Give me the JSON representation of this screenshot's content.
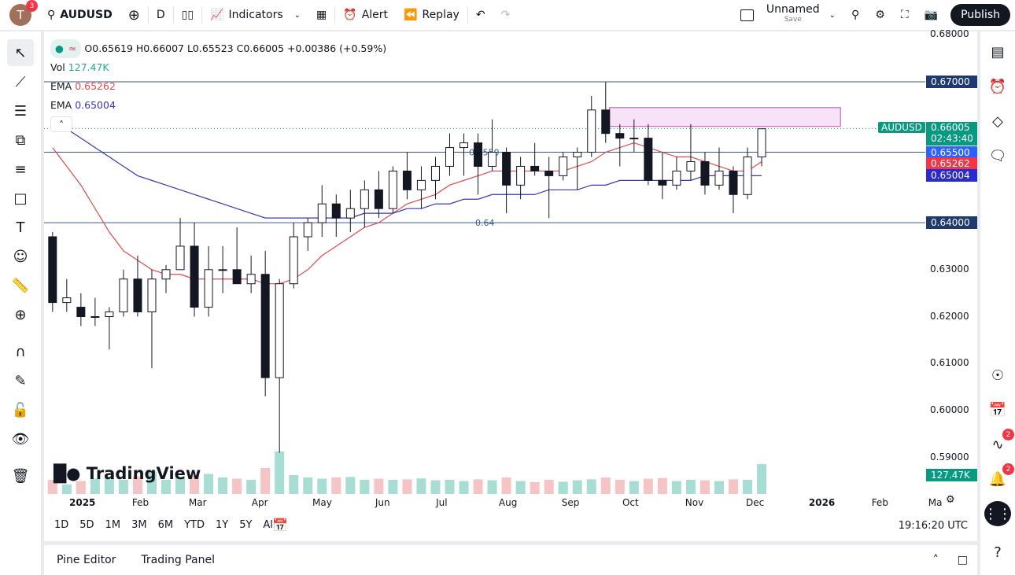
{
  "topbar": {
    "avatar_letter": "T",
    "avatar_badge": "3",
    "symbol": "AUDUSD",
    "interval": "D",
    "indicators": "Indicators",
    "alert": "Alert",
    "replay": "Replay",
    "layout_name": "Unnamed",
    "layout_save": "Save",
    "publish": "Publish"
  },
  "legend": {
    "ohlc": "O0.65619 H0.66007 L0.65523 C0.66005 +0.00386 (+0.59%)",
    "vol_label": "Vol",
    "vol_value": "127.47K",
    "ema1_label": "EMA",
    "ema1_value": "0.65262",
    "ema2_label": "EMA",
    "ema2_value": "0.65004"
  },
  "colors": {
    "up": "#089981",
    "down": "#131722",
    "ema_fast": "#e04b4b",
    "ema_slow": "#3b35b5",
    "hline": "#3a5a8c",
    "zone": "#f7e2f7",
    "price_label": "#089981",
    "level_label": "#2962ff",
    "ema_fast_label": "#f23645",
    "ema_slow_label": "#2a2ad0"
  },
  "price_axis": {
    "ticks": [
      "0.68000",
      "0.67000",
      "0.63000",
      "0.62000",
      "0.61000",
      "0.60000",
      "0.59000"
    ],
    "labels": {
      "symbol": "AUDUSD",
      "last": "0.66005",
      "countdown": "02:43:40",
      "level_6550": "0.65500",
      "ema_fast": "0.65262",
      "ema_slow": "0.65004",
      "level_67": "0.67000",
      "level_64": "0.64000",
      "volume": "127.47K"
    }
  },
  "time_axis": [
    "2025",
    "Feb",
    "Mar",
    "Apr",
    "May",
    "Jun",
    "Jul",
    "Aug",
    "Sep",
    "Oct",
    "Nov",
    "Dec",
    "2026",
    "Feb",
    "Ma"
  ],
  "drawings": {
    "line_6550_label": "0.6550",
    "line_64_label": "0.64"
  },
  "watermark": "TradingView",
  "bottom": {
    "ranges": [
      "1D",
      "5D",
      "1M",
      "3M",
      "6M",
      "YTD",
      "1Y",
      "5Y",
      "All"
    ],
    "clock": "19:16:20 UTC",
    "pine_editor": "Pine Editor",
    "trading_panel": "Trading Panel"
  },
  "right_badges": [
    "2",
    "2"
  ],
  "chart_data": {
    "type": "candlestick",
    "timeframe_shown": "weekly approximation of daily candles",
    "ylim": [
      0.585,
      0.68
    ],
    "horizontal_lines": [
      0.67,
      0.655,
      0.64
    ],
    "zone": {
      "from": "2025-09-20",
      "to": "2026-01-12",
      "low": 0.6605,
      "high": 0.6645
    },
    "last_price": 0.66005,
    "candles": [
      [
        "2024-12-16",
        0.637,
        0.638,
        0.621,
        0.623,
        60
      ],
      [
        "2024-12-23",
        0.623,
        0.628,
        0.621,
        0.624,
        40
      ],
      [
        "2024-12-30",
        0.622,
        0.625,
        0.618,
        0.62,
        55
      ],
      [
        "2025-01-06",
        0.62,
        0.624,
        0.618,
        0.62,
        65
      ],
      [
        "2025-01-13",
        0.62,
        0.622,
        0.613,
        0.621,
        70
      ],
      [
        "2025-01-20",
        0.621,
        0.63,
        0.62,
        0.628,
        60
      ],
      [
        "2025-01-27",
        0.628,
        0.633,
        0.62,
        0.621,
        75
      ],
      [
        "2025-02-03",
        0.621,
        0.63,
        0.609,
        0.628,
        95
      ],
      [
        "2025-02-10",
        0.628,
        0.631,
        0.625,
        0.63,
        60
      ],
      [
        "2025-02-17",
        0.63,
        0.641,
        0.63,
        0.635,
        70
      ],
      [
        "2025-02-24",
        0.635,
        0.64,
        0.62,
        0.622,
        80
      ],
      [
        "2025-03-03",
        0.622,
        0.635,
        0.62,
        0.63,
        85
      ],
      [
        "2025-03-10",
        0.63,
        0.635,
        0.625,
        0.63,
        70
      ],
      [
        "2025-03-17",
        0.63,
        0.639,
        0.627,
        0.627,
        65
      ],
      [
        "2025-03-24",
        0.627,
        0.633,
        0.625,
        0.629,
        60
      ],
      [
        "2025-03-31",
        0.629,
        0.634,
        0.603,
        0.607,
        110
      ],
      [
        "2025-04-07",
        0.607,
        0.628,
        0.591,
        0.627,
        180
      ],
      [
        "2025-04-14",
        0.627,
        0.64,
        0.626,
        0.637,
        80
      ],
      [
        "2025-04-21",
        0.637,
        0.641,
        0.634,
        0.64,
        70
      ],
      [
        "2025-04-28",
        0.64,
        0.648,
        0.637,
        0.644,
        65
      ],
      [
        "2025-05-05",
        0.644,
        0.646,
        0.637,
        0.641,
        70
      ],
      [
        "2025-05-12",
        0.641,
        0.647,
        0.638,
        0.643,
        72
      ],
      [
        "2025-05-19",
        0.643,
        0.649,
        0.639,
        0.647,
        60
      ],
      [
        "2025-05-26",
        0.647,
        0.651,
        0.641,
        0.643,
        65
      ],
      [
        "2025-06-02",
        0.643,
        0.652,
        0.642,
        0.651,
        60
      ],
      [
        "2025-06-09",
        0.651,
        0.655,
        0.645,
        0.647,
        62
      ],
      [
        "2025-06-16",
        0.647,
        0.652,
        0.643,
        0.649,
        66
      ],
      [
        "2025-06-23",
        0.649,
        0.654,
        0.645,
        0.652,
        58
      ],
      [
        "2025-06-30",
        0.652,
        0.659,
        0.65,
        0.656,
        60
      ],
      [
        "2025-07-07",
        0.656,
        0.659,
        0.65,
        0.657,
        55
      ],
      [
        "2025-07-14",
        0.657,
        0.659,
        0.646,
        0.652,
        62
      ],
      [
        "2025-07-21",
        0.652,
        0.662,
        0.651,
        0.655,
        58
      ],
      [
        "2025-07-28",
        0.655,
        0.656,
        0.642,
        0.648,
        70
      ],
      [
        "2025-08-04",
        0.648,
        0.654,
        0.645,
        0.652,
        55
      ],
      [
        "2025-08-11",
        0.652,
        0.657,
        0.65,
        0.651,
        50
      ],
      [
        "2025-08-18",
        0.651,
        0.654,
        0.641,
        0.65,
        60
      ],
      [
        "2025-08-25",
        0.65,
        0.655,
        0.649,
        0.654,
        52
      ],
      [
        "2025-09-01",
        0.654,
        0.656,
        0.647,
        0.655,
        58
      ],
      [
        "2025-09-08",
        0.655,
        0.667,
        0.654,
        0.664,
        62
      ],
      [
        "2025-09-15",
        0.664,
        0.67,
        0.657,
        0.659,
        70
      ],
      [
        "2025-09-22",
        0.659,
        0.661,
        0.652,
        0.658,
        60
      ],
      [
        "2025-09-29",
        0.658,
        0.662,
        0.655,
        0.658,
        55
      ],
      [
        "2025-10-06",
        0.658,
        0.661,
        0.648,
        0.649,
        65
      ],
      [
        "2025-10-13",
        0.649,
        0.655,
        0.645,
        0.648,
        68
      ],
      [
        "2025-10-20",
        0.648,
        0.654,
        0.647,
        0.651,
        55
      ],
      [
        "2025-10-27",
        0.651,
        0.661,
        0.649,
        0.653,
        60
      ],
      [
        "2025-11-03",
        0.653,
        0.655,
        0.646,
        0.648,
        58
      ],
      [
        "2025-11-10",
        0.648,
        0.656,
        0.647,
        0.651,
        55
      ],
      [
        "2025-11-17",
        0.651,
        0.652,
        0.642,
        0.646,
        62
      ],
      [
        "2025-11-24",
        0.646,
        0.656,
        0.645,
        0.654,
        60
      ],
      [
        "2025-12-01",
        0.654,
        0.66,
        0.652,
        0.66,
        127
      ]
    ],
    "ema_fast": [
      0.656,
      0.652,
      0.648,
      0.643,
      0.638,
      0.634,
      0.632,
      0.63,
      0.629,
      0.629,
      0.628,
      0.628,
      0.628,
      0.628,
      0.628,
      0.627,
      0.627,
      0.628,
      0.63,
      0.633,
      0.635,
      0.637,
      0.639,
      0.64,
      0.642,
      0.644,
      0.645,
      0.646,
      0.648,
      0.649,
      0.65,
      0.651,
      0.651,
      0.651,
      0.651,
      0.651,
      0.651,
      0.652,
      0.653,
      0.655,
      0.656,
      0.657,
      0.656,
      0.655,
      0.654,
      0.654,
      0.653,
      0.652,
      0.651,
      0.651,
      0.653
    ],
    "ema_slow": [
      0.662,
      0.66,
      0.658,
      0.656,
      0.654,
      0.652,
      0.65,
      0.649,
      0.648,
      0.647,
      0.646,
      0.645,
      0.644,
      0.643,
      0.642,
      0.641,
      0.641,
      0.641,
      0.641,
      0.641,
      0.641,
      0.641,
      0.642,
      0.642,
      0.642,
      0.643,
      0.643,
      0.644,
      0.644,
      0.645,
      0.645,
      0.646,
      0.646,
      0.646,
      0.646,
      0.647,
      0.647,
      0.647,
      0.648,
      0.648,
      0.649,
      0.649,
      0.649,
      0.649,
      0.649,
      0.649,
      0.65,
      0.65,
      0.65,
      0.65,
      0.65
    ]
  }
}
